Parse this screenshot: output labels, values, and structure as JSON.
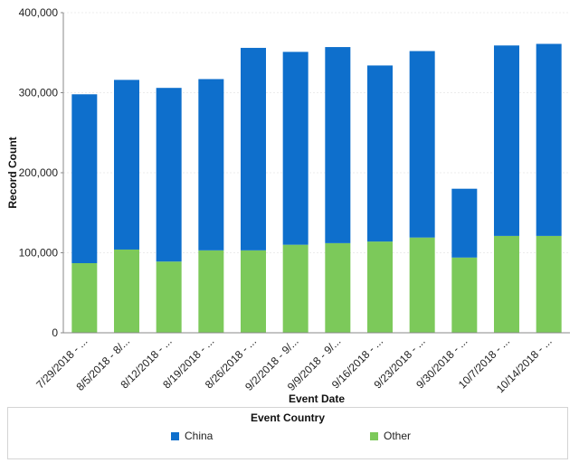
{
  "chart_data": {
    "type": "bar",
    "stacked": true,
    "xlabel": "Event Date",
    "ylabel": "Record Count",
    "ylim": [
      0,
      400000
    ],
    "yticks": [
      0,
      100000,
      200000,
      300000,
      400000
    ],
    "ytick_labels": [
      "0",
      "100,000",
      "200,000",
      "300,000",
      "400,000"
    ],
    "categories": [
      "7/29/2018 - ...",
      "8/5/2018 - 8/...",
      "8/12/2018 - ...",
      "8/19/2018 - ...",
      "8/26/2018 - ...",
      "9/2/2018 - 9/...",
      "9/9/2018 - 9/...",
      "9/16/2018 - ...",
      "9/23/2018 - ...",
      "9/30/2018 - ...",
      "10/7/2018 - ...",
      "10/14/2018 - ..."
    ],
    "series": [
      {
        "name": "Other",
        "color": "#7cc95a",
        "values": [
          87000,
          104000,
          89000,
          103000,
          103000,
          110000,
          112000,
          114000,
          119000,
          94000,
          121000,
          121000
        ]
      },
      {
        "name": "China",
        "color": "#0e6fcc",
        "values": [
          211000,
          212000,
          217000,
          214000,
          253000,
          241000,
          245000,
          220000,
          233000,
          86000,
          238000,
          240000
        ]
      }
    ],
    "grid": true,
    "legend": {
      "title": "Event Country",
      "placement": "bottom",
      "entries": [
        "China",
        "Other"
      ]
    }
  }
}
